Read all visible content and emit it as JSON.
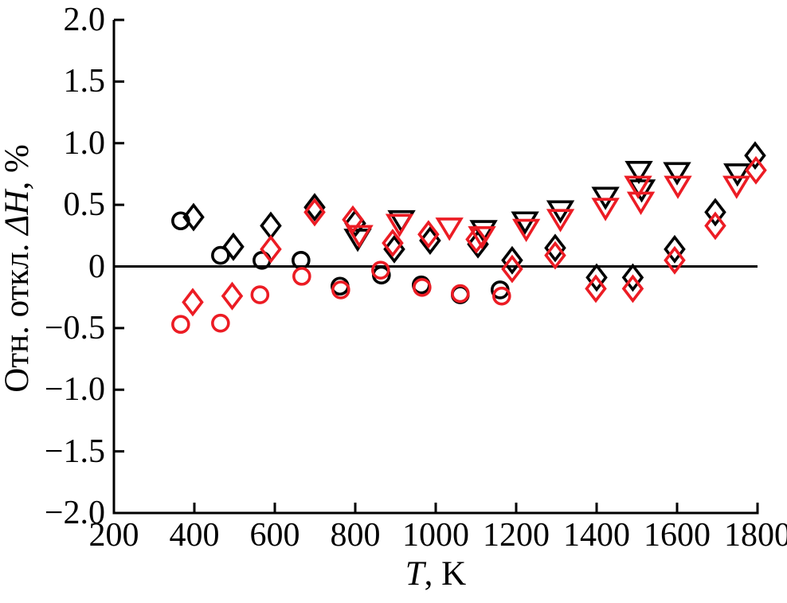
{
  "chart_data": {
    "type": "scatter",
    "title": "",
    "xlabel": {
      "italic": "T",
      "suffix": ", K"
    },
    "ylabel": {
      "prefix": "Отн. откл. ",
      "italic": "ΔH",
      "suffix": ", %"
    },
    "xlim": [
      200,
      1800
    ],
    "ylim": [
      -2.0,
      2.0
    ],
    "grid": false,
    "legend": "none",
    "zero_line": 0,
    "background": "#ffffff",
    "colors": {
      "black": "#000000",
      "red": "#ec1c24"
    },
    "x_ticks": {
      "values": [
        200,
        400,
        600,
        800,
        1000,
        1200,
        1400,
        1600,
        1800
      ],
      "labels": [
        "200",
        "400",
        "600",
        "800",
        "1000",
        "1200",
        "1400",
        "1600",
        "1800"
      ]
    },
    "y_ticks": {
      "values": [
        2.0,
        1.5,
        1.0,
        0.5,
        0,
        -0.5,
        -1.0,
        -1.5,
        -2.0
      ],
      "labels": [
        "2.0",
        "1.5",
        "1.0",
        "0.5",
        "0",
        "−0.5",
        "−1.0",
        "−1.5",
        "−2.0"
      ]
    },
    "series": [
      {
        "name": "black-circles",
        "marker": "circle",
        "color": "black",
        "points": [
          [
            366,
            0.37
          ],
          [
            465,
            0.09
          ],
          [
            568,
            0.05
          ],
          [
            665,
            0.05
          ],
          [
            762,
            -0.16
          ],
          [
            865,
            -0.07
          ],
          [
            964,
            -0.15
          ],
          [
            1061,
            -0.23
          ],
          [
            1160,
            -0.19
          ]
        ]
      },
      {
        "name": "black-diamonds",
        "marker": "diamond",
        "color": "black",
        "points": [
          [
            398,
            0.4
          ],
          [
            497,
            0.16
          ],
          [
            590,
            0.33
          ],
          [
            699,
            0.48
          ],
          [
            800,
            0.35
          ],
          [
            897,
            0.14
          ],
          [
            986,
            0.21
          ],
          [
            1105,
            0.18
          ],
          [
            1190,
            0.05
          ],
          [
            1297,
            0.15
          ],
          [
            1400,
            -0.09
          ],
          [
            1490,
            -0.09
          ],
          [
            1594,
            0.14
          ],
          [
            1695,
            0.44
          ],
          [
            1794,
            0.9
          ]
        ]
      },
      {
        "name": "black-triangles",
        "marker": "triangle-down",
        "color": "black",
        "points": [
          [
            806,
            0.23
          ],
          [
            915,
            0.38
          ],
          [
            1119,
            0.3
          ],
          [
            1222,
            0.37
          ],
          [
            1310,
            0.46
          ],
          [
            1422,
            0.57
          ],
          [
            1505,
            0.78
          ],
          [
            1512,
            0.63
          ],
          [
            1600,
            0.77
          ],
          [
            1750,
            0.76
          ]
        ]
      },
      {
        "name": "red-circles",
        "marker": "circle",
        "color": "red",
        "points": [
          [
            366,
            -0.47
          ],
          [
            465,
            -0.46
          ],
          [
            563,
            -0.23
          ],
          [
            667,
            -0.08
          ],
          [
            764,
            -0.19
          ],
          [
            863,
            -0.03
          ],
          [
            966,
            -0.17
          ],
          [
            1061,
            -0.22
          ],
          [
            1164,
            -0.24
          ]
        ]
      },
      {
        "name": "red-diamonds",
        "marker": "diamond",
        "color": "red",
        "points": [
          [
            396,
            -0.29
          ],
          [
            494,
            -0.24
          ],
          [
            590,
            0.14
          ],
          [
            699,
            0.44
          ],
          [
            794,
            0.38
          ],
          [
            893,
            0.19
          ],
          [
            982,
            0.26
          ],
          [
            1101,
            0.22
          ],
          [
            1190,
            -0.02
          ],
          [
            1297,
            0.09
          ],
          [
            1398,
            -0.18
          ],
          [
            1490,
            -0.18
          ],
          [
            1594,
            0.05
          ],
          [
            1695,
            0.33
          ],
          [
            1796,
            0.78
          ]
        ]
      },
      {
        "name": "red-triangles",
        "marker": "triangle-down",
        "color": "red",
        "points": [
          [
            810,
            0.26
          ],
          [
            910,
            0.35
          ],
          [
            1034,
            0.32
          ],
          [
            1115,
            0.25
          ],
          [
            1225,
            0.31
          ],
          [
            1310,
            0.39
          ],
          [
            1422,
            0.48
          ],
          [
            1503,
            0.66
          ],
          [
            1510,
            0.53
          ],
          [
            1602,
            0.66
          ],
          [
            1748,
            0.66
          ]
        ]
      }
    ]
  }
}
